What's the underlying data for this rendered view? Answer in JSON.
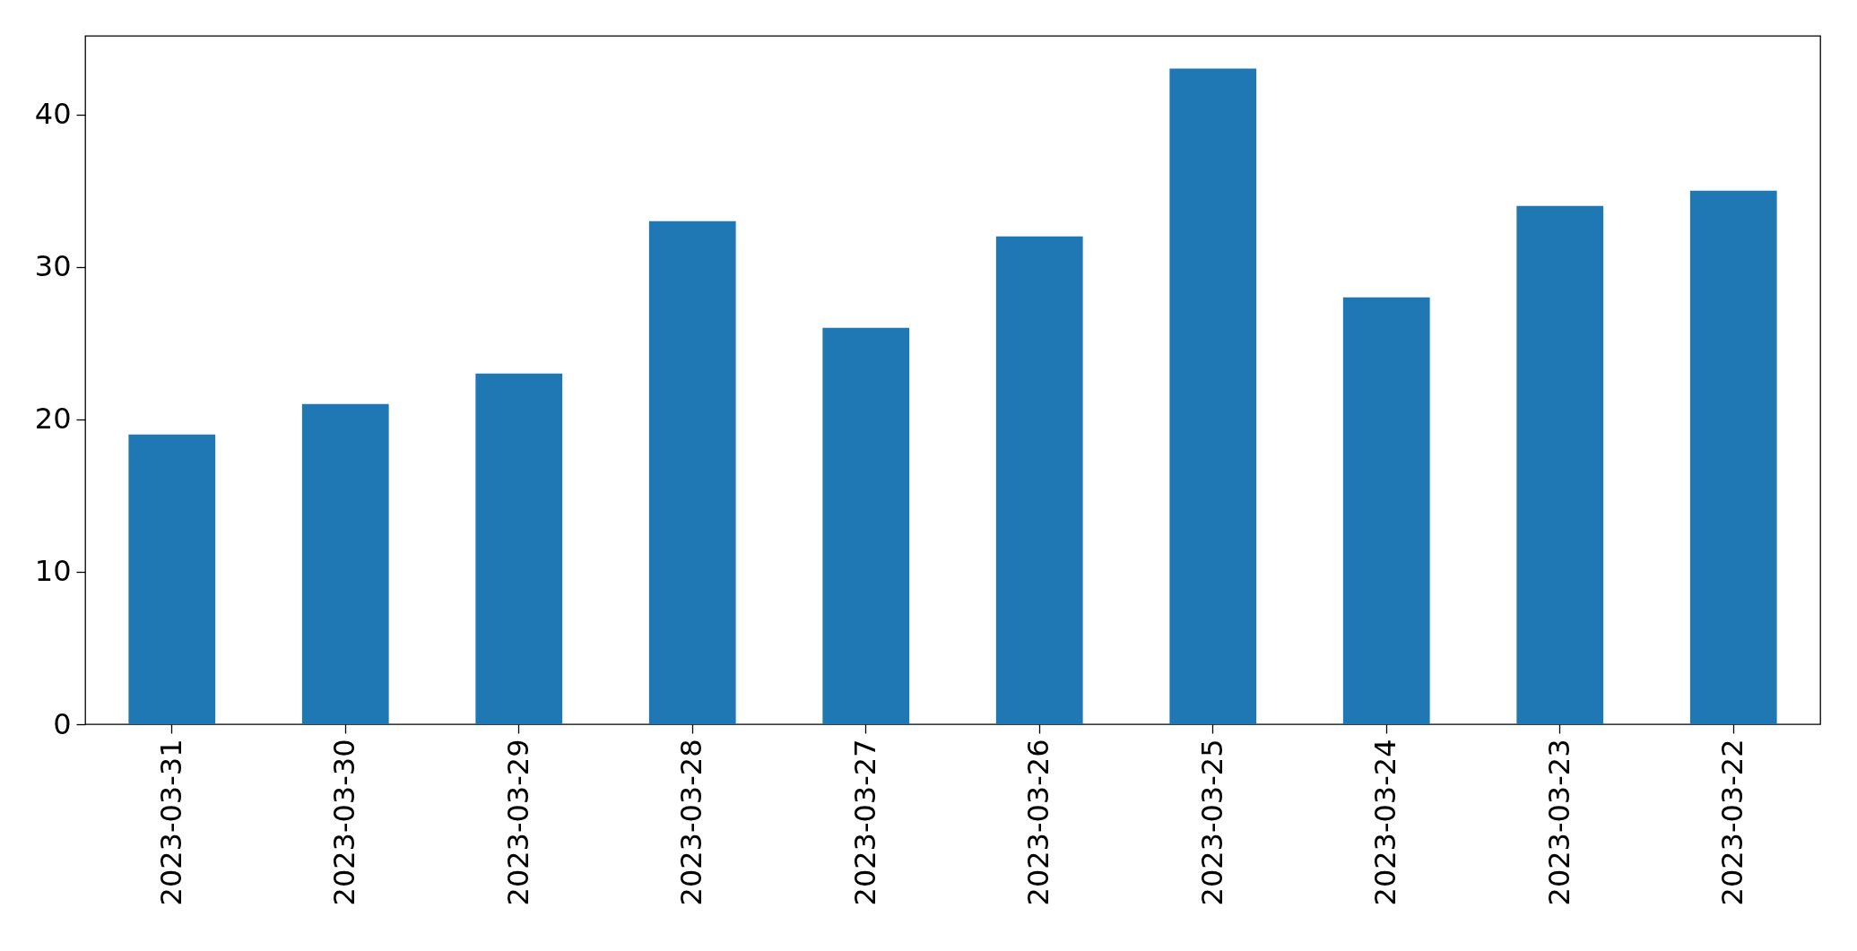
{
  "chart_data": {
    "type": "bar",
    "categories": [
      "2023-03-31",
      "2023-03-30",
      "2023-03-29",
      "2023-03-28",
      "2023-03-27",
      "2023-03-26",
      "2023-03-25",
      "2023-03-24",
      "2023-03-23",
      "2023-03-22"
    ],
    "values": [
      19,
      21,
      23,
      33,
      26,
      32,
      43,
      28,
      34,
      35
    ],
    "color": "#1f77b4",
    "ylim": [
      0,
      45.15
    ],
    "yticks": [
      0,
      10,
      20,
      30,
      40
    ],
    "grid": false
  }
}
